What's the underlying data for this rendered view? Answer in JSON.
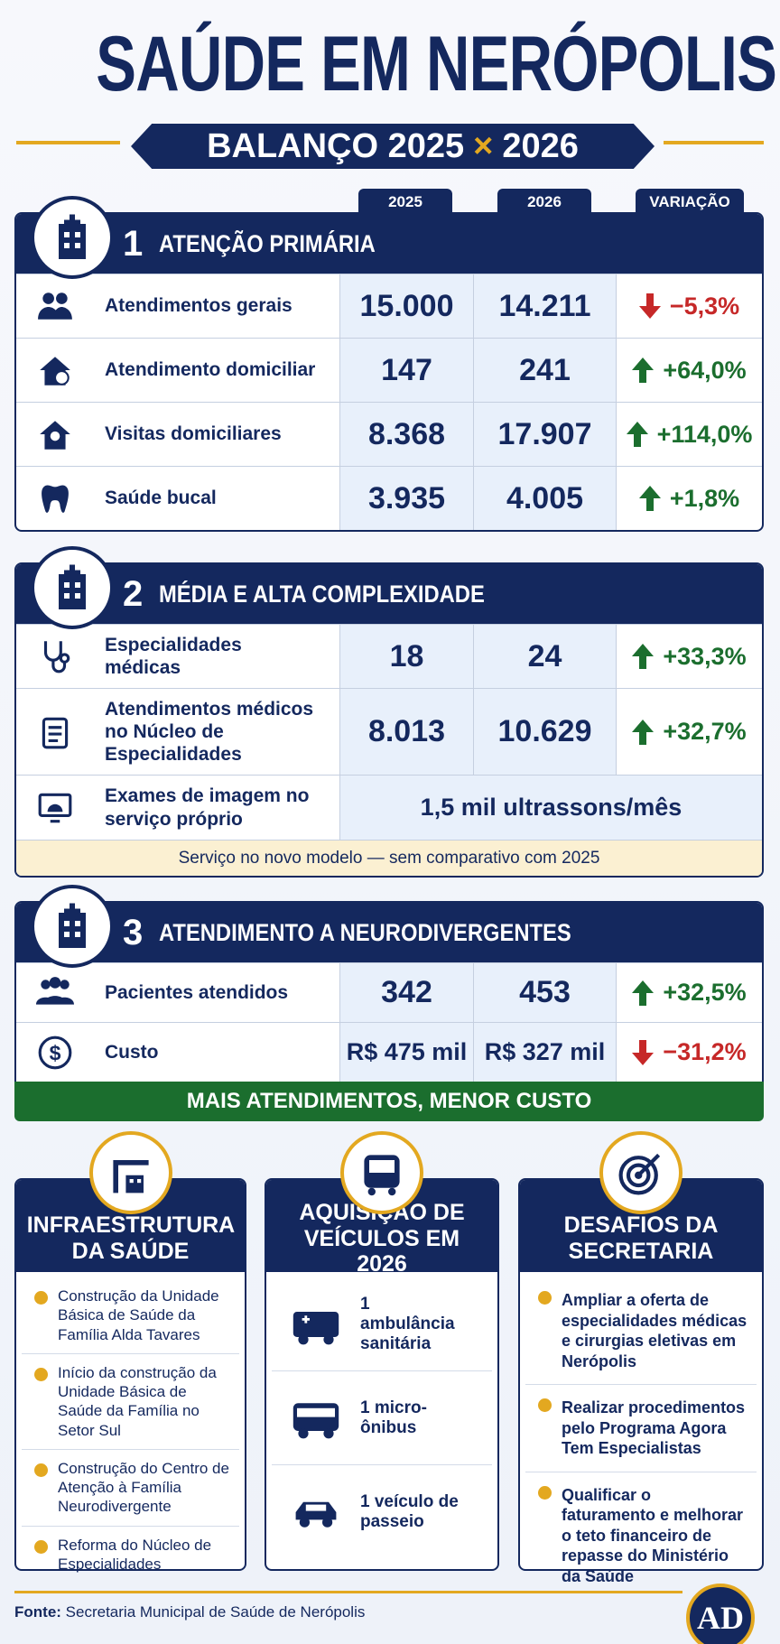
{
  "header": {
    "title": "SAÚDE EM NERÓPOLIS",
    "subtitle_left": "BALANÇO 2025",
    "subtitle_sep": "×",
    "subtitle_right": "2026"
  },
  "columns": [
    "2025",
    "2026",
    "VARIAÇÃO"
  ],
  "sections": [
    {
      "number": "1",
      "title": "ATENÇÃO PRIMÁRIA",
      "rows": [
        {
          "label": "Atendimentos gerais",
          "v2025": "15.000",
          "v2026": "14.211",
          "change": "−5,3%",
          "direction": "down"
        },
        {
          "label": "Atendimento domiciliar",
          "v2025": "147",
          "v2026": "241",
          "change": "+64,0%",
          "direction": "up"
        },
        {
          "label": "Visitas domiciliares",
          "v2025": "8.368",
          "v2026": "17.907",
          "change": "+114,0%",
          "direction": "up"
        },
        {
          "label": "Saúde bucal",
          "v2025": "3.935",
          "v2026": "4.005",
          "change": "+1,8%",
          "direction": "up"
        }
      ]
    },
    {
      "number": "2",
      "title": "MÉDIA E ALTA COMPLEXIDADE",
      "rows": [
        {
          "label": "Especialidades médicas",
          "v2025": "18",
          "v2026": "24",
          "change": "+33,3%",
          "direction": "up"
        },
        {
          "label": "Atendimentos médicos no Núcleo de Especialidades",
          "v2025": "8.013",
          "v2026": "10.629",
          "change": "+32,7%",
          "direction": "up"
        },
        {
          "label": "Exames de imagem no serviço próprio",
          "merged": "1,5 mil ultrassons/mês"
        }
      ],
      "note": "Serviço no novo modelo — sem comparativo com 2025"
    },
    {
      "number": "3",
      "title": "ATENDIMENTO A NEURODIVERGENTES",
      "rows": [
        {
          "label": "Pacientes atendidos",
          "v2025": "342",
          "v2026": "453",
          "change": "+32,5%",
          "direction": "up"
        },
        {
          "label": "Custo",
          "v2025": "R$ 475 mil",
          "v2026": "R$ 327 mil",
          "change": "−31,2%",
          "direction": "down"
        }
      ],
      "banner": "MAIS ATENDIMENTOS, MENOR CUSTO"
    }
  ],
  "cards": [
    {
      "title": "INFRAESTRUTURA DA SAÚDE",
      "items": [
        "Construção da Unidade Básica de Saúde da Família Alda Tavares",
        "Início da construção da Unidade Básica de Saúde da Família no Setor Sul",
        "Construção do Centro de Atenção à Família Neurodivergente",
        "Reforma do Núcleo de Especialidades"
      ]
    },
    {
      "title": "AQUISIÇÃO DE VEÍCULOS EM 2026",
      "items": [
        "1 ambulância sanitária",
        "1 micro-ônibus",
        "1 veículo de passeio"
      ]
    },
    {
      "title": "DESAFIOS DA SECRETARIA",
      "items": [
        "Ampliar a oferta de especialidades médicas e cirurgias eletivas em Nerópolis",
        "Realizar procedimentos pelo Programa Agora Tem Especialistas",
        "Qualificar o faturamento e melhorar o teto financeiro de repasse do Ministério da Saúde"
      ]
    }
  ],
  "footer": {
    "source_label": "Fonte:",
    "source": "Secretaria Municipal de Saúde de Nerópolis",
    "logo": "AD"
  }
}
